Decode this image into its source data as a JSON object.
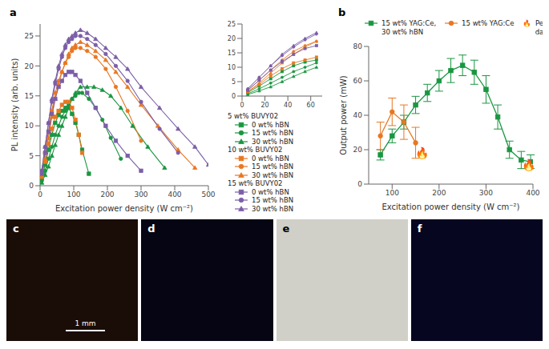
{
  "chart_data": [
    {
      "type": "line",
      "title": "a",
      "xlabel": "Excitation power density (W cm⁻²)",
      "ylabel": "PL intensity (arb. units)",
      "xlim": [
        0,
        500
      ],
      "ylim": [
        0,
        27
      ],
      "xticks": [
        0,
        100,
        200,
        300,
        400,
        500
      ],
      "yticks": [
        0,
        5,
        10,
        15,
        20,
        25
      ],
      "grid": false,
      "legend": "right",
      "series": [
        {
          "name": "0 wt% hBN",
          "group": "5 wt% BUVY02",
          "color": "#1a9641",
          "marker": "square",
          "x": [
            5,
            15,
            25,
            35,
            45,
            55,
            65,
            75,
            85,
            95,
            105,
            115,
            125,
            145
          ],
          "values": [
            1.2,
            3.5,
            6.0,
            8.5,
            10.5,
            11.8,
            12.5,
            13.0,
            13.0,
            12.0,
            10.5,
            8.5,
            6.0,
            2.0
          ]
        },
        {
          "name": "15 wt% hBN",
          "group": "5 wt% BUVY02",
          "color": "#1a9641",
          "marker": "circle",
          "x": [
            5,
            15,
            25,
            35,
            45,
            55,
            65,
            75,
            85,
            95,
            105,
            115,
            125,
            145,
            165,
            185,
            210,
            240
          ],
          "values": [
            0.8,
            2.5,
            4.5,
            6.5,
            8.5,
            10.0,
            11.5,
            12.5,
            13.5,
            14.5,
            15.0,
            15.5,
            15.5,
            14.5,
            13.0,
            11.0,
            8.0,
            4.5
          ]
        },
        {
          "name": "30 wt% hBN",
          "group": "5 wt% BUVY02",
          "color": "#1a9641",
          "marker": "triangle",
          "x": [
            5,
            15,
            25,
            35,
            45,
            55,
            65,
            75,
            85,
            95,
            105,
            120,
            140,
            160,
            185,
            210,
            240,
            275,
            320,
            370
          ],
          "values": [
            0.5,
            1.8,
            3.2,
            5.0,
            6.8,
            8.5,
            10.0,
            11.5,
            13.0,
            14.5,
            15.5,
            16.5,
            16.5,
            16.5,
            16.0,
            15.0,
            13.0,
            10.0,
            6.5,
            3.0
          ]
        },
        {
          "name": "0 wt% hBN",
          "group": "10 wt% BUVY02",
          "color": "#e87722",
          "marker": "square",
          "x": [
            5,
            15,
            25,
            35,
            45,
            55,
            65,
            75,
            85,
            95,
            105,
            115,
            125
          ],
          "values": [
            1.5,
            4.0,
            7.0,
            9.5,
            11.5,
            12.5,
            13.5,
            14.0,
            14.0,
            13.0,
            11.0,
            8.5,
            5.5
          ]
        },
        {
          "name": "15 wt% hBN",
          "group": "10 wt% BUVY02",
          "color": "#e87722",
          "marker": "circle",
          "x": [
            5,
            15,
            25,
            35,
            45,
            55,
            65,
            75,
            85,
            95,
            105,
            120,
            140,
            165,
            195,
            225,
            260,
            300
          ],
          "values": [
            2.0,
            5.5,
            9.0,
            12.5,
            15.5,
            17.5,
            19.0,
            20.5,
            21.5,
            22.5,
            23.0,
            23.0,
            22.5,
            21.5,
            19.5,
            16.5,
            12.5,
            7.5
          ]
        },
        {
          "name": "30 wt% hBN",
          "group": "10 wt% BUVY02",
          "color": "#e87722",
          "marker": "triangle",
          "x": [
            5,
            15,
            25,
            35,
            45,
            55,
            65,
            75,
            85,
            95,
            105,
            120,
            140,
            165,
            195,
            225,
            260,
            300,
            350,
            410,
            460
          ],
          "values": [
            1.5,
            4.5,
            8.0,
            11.5,
            14.5,
            17.0,
            19.0,
            20.5,
            22.0,
            23.0,
            23.5,
            24.0,
            23.5,
            22.5,
            21.0,
            19.0,
            16.5,
            13.5,
            10.0,
            6.0,
            3.0
          ]
        },
        {
          "name": "0 wt% hBN",
          "group": "15 wt% BUVY02",
          "color": "#7b5ea7",
          "marker": "square",
          "x": [
            5,
            15,
            25,
            35,
            45,
            55,
            65,
            75,
            85,
            95,
            105,
            120,
            140,
            165,
            195,
            225,
            260,
            300
          ],
          "values": [
            2.0,
            5.5,
            9.0,
            12.0,
            14.5,
            16.5,
            17.5,
            18.5,
            19.0,
            19.0,
            18.5,
            17.5,
            15.5,
            13.0,
            10.0,
            7.5,
            5.0,
            2.5
          ]
        },
        {
          "name": "15 wt% hBN",
          "group": "15 wt% BUVY02",
          "color": "#7b5ea7",
          "marker": "circle",
          "x": [
            5,
            15,
            25,
            35,
            45,
            55,
            65,
            75,
            85,
            95,
            105,
            120,
            140,
            165,
            195,
            225,
            260,
            300,
            355,
            410
          ],
          "values": [
            2.5,
            6.5,
            10.5,
            14.0,
            17.0,
            19.5,
            21.5,
            23.0,
            24.0,
            24.5,
            25.0,
            25.0,
            24.5,
            23.5,
            22.0,
            20.0,
            17.5,
            14.0,
            9.5,
            5.5
          ]
        },
        {
          "name": "30 wt% hBN",
          "group": "15 wt% BUVY02",
          "color": "#7b5ea7",
          "marker": "triangle",
          "x": [
            5,
            15,
            25,
            35,
            45,
            55,
            65,
            75,
            85,
            95,
            105,
            120,
            140,
            165,
            195,
            225,
            260,
            300,
            355,
            410,
            460,
            500
          ],
          "values": [
            2.5,
            6.5,
            10.5,
            14.5,
            17.5,
            20.0,
            22.0,
            23.5,
            24.5,
            25.0,
            25.5,
            26.0,
            25.5,
            24.5,
            23.0,
            21.5,
            19.5,
            16.5,
            13.0,
            9.5,
            6.5,
            3.5
          ]
        }
      ]
    },
    {
      "type": "line",
      "xlim": [
        0,
        70
      ],
      "ylim": [
        0,
        25
      ],
      "xticks": [
        0,
        20,
        40,
        60
      ],
      "yticks": [
        0,
        5,
        10,
        15,
        20,
        25
      ],
      "grid": false,
      "series": [
        {
          "color": "#1a9641",
          "marker": "square",
          "x": [
            5,
            15,
            25,
            35,
            45,
            55,
            65
          ],
          "values": [
            1.2,
            3.5,
            6.0,
            8.5,
            10.5,
            11.8,
            12.5
          ]
        },
        {
          "color": "#1a9641",
          "marker": "circle",
          "x": [
            5,
            15,
            25,
            35,
            45,
            55,
            65
          ],
          "values": [
            0.8,
            2.5,
            4.5,
            6.5,
            8.5,
            10.0,
            11.5
          ]
        },
        {
          "color": "#1a9641",
          "marker": "triangle",
          "x": [
            5,
            15,
            25,
            35,
            45,
            55,
            65
          ],
          "values": [
            0.5,
            1.8,
            3.2,
            5.0,
            6.8,
            8.5,
            10.0
          ]
        },
        {
          "color": "#e87722",
          "marker": "square",
          "x": [
            5,
            15,
            25,
            35,
            45,
            55,
            65
          ],
          "values": [
            1.5,
            4.0,
            7.0,
            9.5,
            11.5,
            12.5,
            13.5
          ]
        },
        {
          "color": "#e87722",
          "marker": "circle",
          "x": [
            5,
            15,
            25,
            35,
            45,
            55,
            65
          ],
          "values": [
            2.0,
            5.5,
            9.0,
            12.5,
            15.5,
            17.5,
            19.0
          ]
        },
        {
          "color": "#e87722",
          "marker": "triangle",
          "x": [
            5,
            15,
            25,
            35,
            45,
            55,
            65
          ],
          "values": [
            1.5,
            4.5,
            8.0,
            11.5,
            14.5,
            17.0,
            19.0
          ]
        },
        {
          "color": "#7b5ea7",
          "marker": "square",
          "x": [
            5,
            15,
            25,
            35,
            45,
            55,
            65
          ],
          "values": [
            2.0,
            5.5,
            9.0,
            12.0,
            14.5,
            16.5,
            17.5
          ]
        },
        {
          "color": "#7b5ea7",
          "marker": "circle",
          "x": [
            5,
            15,
            25,
            35,
            45,
            55,
            65
          ],
          "values": [
            2.5,
            6.5,
            10.5,
            14.0,
            17.0,
            19.5,
            21.5
          ]
        },
        {
          "color": "#7b5ea7",
          "marker": "triangle",
          "x": [
            5,
            15,
            25,
            35,
            45,
            55,
            65
          ],
          "values": [
            2.5,
            6.5,
            10.5,
            14.5,
            17.5,
            20.0,
            22.0
          ]
        }
      ]
    },
    {
      "type": "line",
      "title": "b",
      "xlabel": "Excitation power density (W cm⁻²)",
      "ylabel": "Output power (mW)",
      "xlim": [
        50,
        400
      ],
      "ylim": [
        0,
        80
      ],
      "xticks": [
        100,
        200,
        300,
        400
      ],
      "yticks": [
        0,
        20,
        40,
        60,
        80
      ],
      "grid": false,
      "legend": "top",
      "series": [
        {
          "name": "15 wt% YAG:Ce,\n30 wt% hBN",
          "color": "#1a9641",
          "marker": "square",
          "x": [
            75,
            100,
            125,
            150,
            175,
            200,
            225,
            250,
            275,
            300,
            325,
            350,
            375,
            395
          ],
          "values": [
            17,
            28,
            36,
            46,
            53,
            60,
            66,
            69,
            65,
            55,
            39,
            20,
            14,
            13
          ],
          "yerr": [
            3,
            4,
            4,
            5,
            5,
            6,
            7,
            6,
            7,
            8,
            7,
            5,
            5,
            4
          ]
        },
        {
          "name": "15 wt% YAG:Ce",
          "color": "#e87722",
          "marker": "circle",
          "x": [
            75,
            100,
            125,
            150
          ],
          "values": [
            28,
            42,
            36,
            24
          ],
          "yerr": [
            8,
            8,
            10,
            9
          ]
        }
      ],
      "annotations": [
        {
          "text": "🔥",
          "x": 390,
          "y": 8
        },
        {
          "text": "🔥",
          "x": 163,
          "y": 15
        },
        {
          "text": "🔥  Permanent\n      damage"
        }
      ]
    },
    {
      "type": "photo",
      "title": "c",
      "color": "#1a0d08",
      "annotations": [
        {
          "text": "1 mm"
        }
      ]
    },
    {
      "type": "photo",
      "title": "d",
      "color": "#050514"
    },
    {
      "type": "photo",
      "title": "e",
      "color": "#d0cfc8"
    },
    {
      "type": "photo",
      "title": "f",
      "color": "#060620"
    }
  ]
}
